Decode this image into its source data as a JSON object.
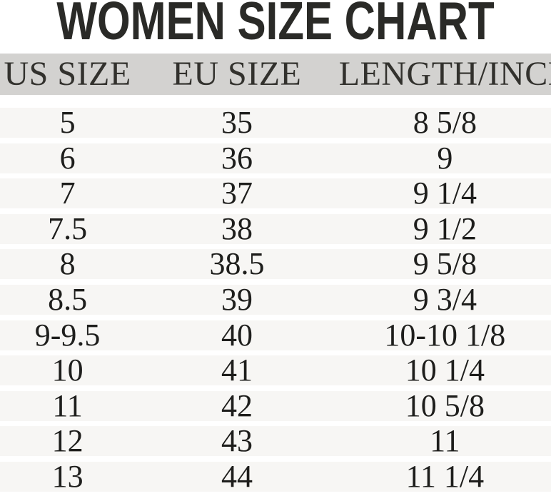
{
  "title": "WOMEN SIZE CHART",
  "chart_data": {
    "type": "table",
    "title": "WOMEN SIZE CHART",
    "columns": [
      "US SIZE",
      "EU SIZE",
      "LENGTH/INCH"
    ],
    "rows": [
      [
        "5",
        "35",
        "8 5/8"
      ],
      [
        "6",
        "36",
        "9"
      ],
      [
        "7",
        "37",
        "9 1/4"
      ],
      [
        "7.5",
        "38",
        "9 1/2"
      ],
      [
        "8",
        "38.5",
        "9 5/8"
      ],
      [
        "8.5",
        "39",
        "9 3/4"
      ],
      [
        "9-9.5",
        "40",
        "10-10 1/8"
      ],
      [
        "10",
        "41",
        "10 1/4"
      ],
      [
        "11",
        "42",
        "10 5/8"
      ],
      [
        "12",
        "43",
        "11"
      ],
      [
        "13",
        "44",
        "11 1/4"
      ]
    ]
  },
  "colors": {
    "background": "#ffffff",
    "title_text": "#2a2a27",
    "header_band": "#d3d2d0",
    "header_text": "#32312d",
    "row_band": "#f7f6f4",
    "row_text": "#1e1e1c"
  }
}
